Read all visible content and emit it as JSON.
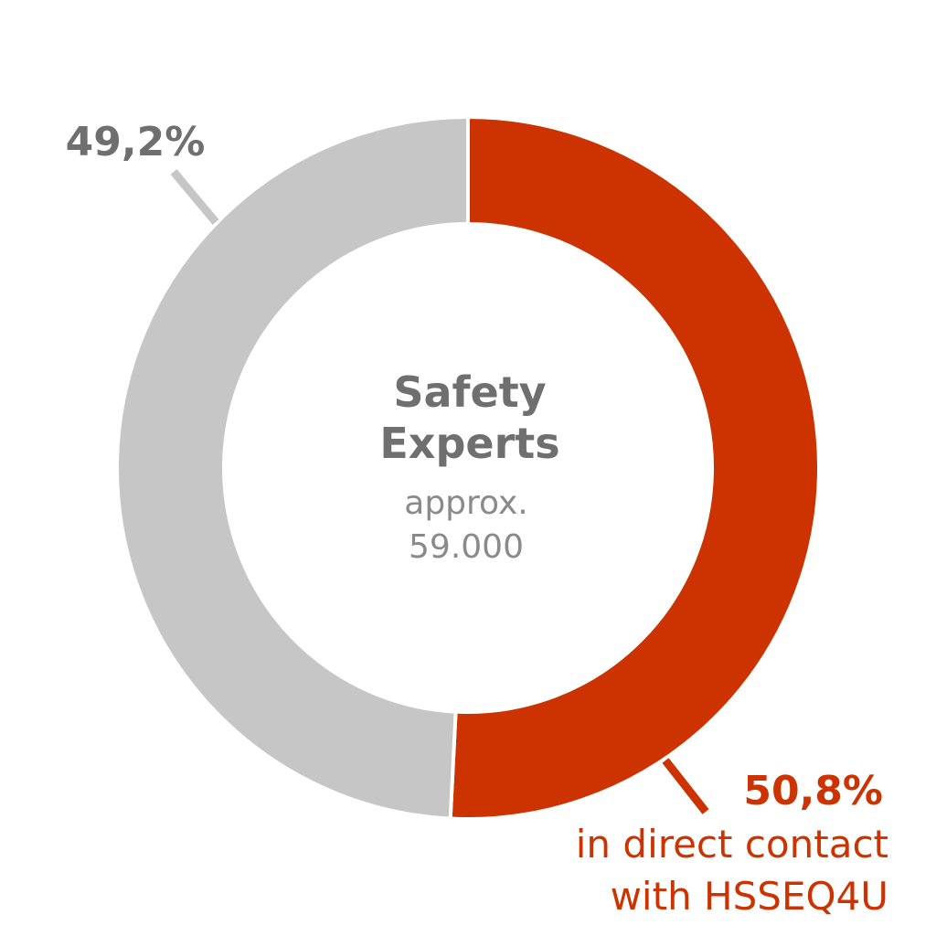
{
  "chart_data": {
    "type": "pie",
    "donut": true,
    "slices": [
      {
        "value": 50.8,
        "label": "50,8%",
        "description": [
          "in direct contact",
          "with HSSEQ4U"
        ],
        "color": "#CC3300"
      },
      {
        "value": 49.2,
        "label": "49,2%",
        "description": [],
        "color": "#C6C6C6"
      }
    ],
    "center": {
      "title": [
        "Safety",
        "Experts"
      ],
      "subtitle": [
        "approx.",
        "59.000"
      ],
      "title_color": "#6F6F6F",
      "subtitle_color": "#8A8A8A"
    },
    "label_colors": {
      "red": "#CC3300",
      "grey": "#6F6F6F"
    }
  }
}
